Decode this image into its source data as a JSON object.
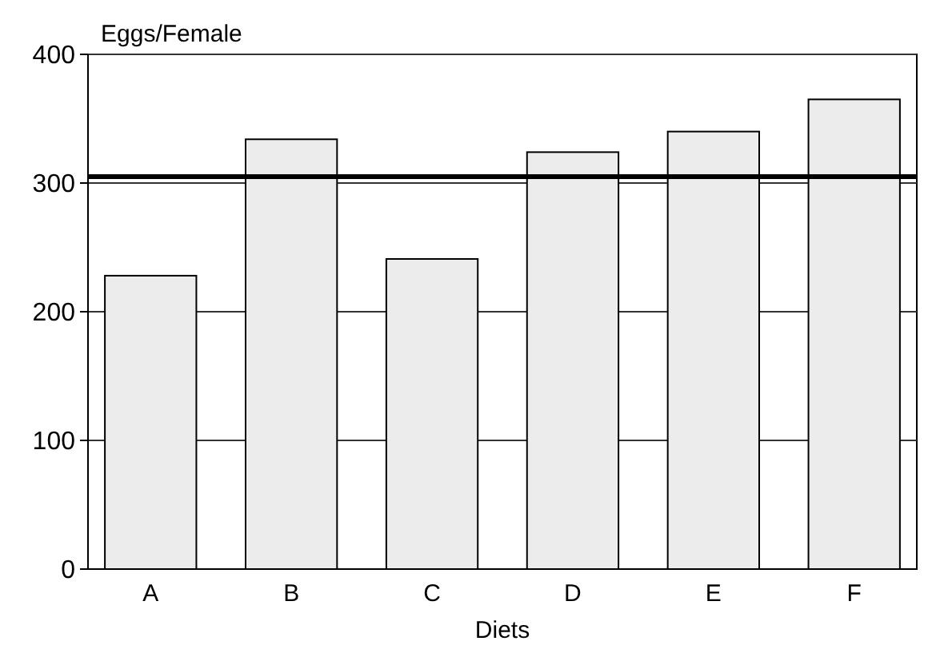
{
  "chart_data": {
    "type": "bar",
    "ylabel": "Eggs/Female",
    "xlabel": "Diets",
    "categories": [
      "A",
      "B",
      "C",
      "D",
      "E",
      "F"
    ],
    "values": [
      228,
      334,
      241,
      324,
      340,
      365
    ],
    "color": "#ececec",
    "ylim": [
      0,
      400
    ],
    "yticks": [
      0,
      100,
      200,
      300,
      400
    ],
    "grid": "y",
    "ref_lines": [
      {
        "axis": "y",
        "value": 305,
        "color": "#000000"
      }
    ]
  }
}
